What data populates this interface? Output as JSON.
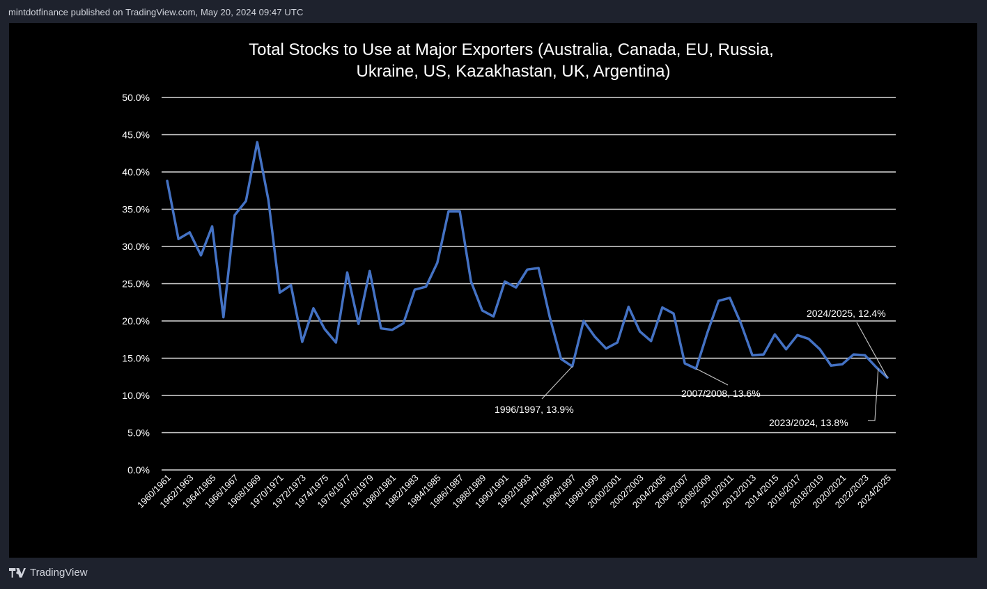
{
  "header": {
    "attribution": "mintdotfinance published on TradingView.com, May 20, 2024 09:47 UTC"
  },
  "footer": {
    "brand": "TradingView",
    "logo_icon": "tradingview-logo-icon"
  },
  "chart_data": {
    "type": "line",
    "title": [
      "Total Stocks to Use at Major Exporters (Australia, Canada, EU, Russia,",
      "Ukraine, US, Kazakhastan, UK, Argentina)"
    ],
    "xlabel": "",
    "ylabel": "",
    "ylim": [
      0,
      50
    ],
    "yticks": [
      "0.0%",
      "5.0%",
      "10.0%",
      "15.0%",
      "20.0%",
      "25.0%",
      "30.0%",
      "35.0%",
      "40.0%",
      "45.0%",
      "50.0%"
    ],
    "grid": true,
    "line_color": "#4472c4",
    "categories": [
      "1960/1961",
      "1961/1962",
      "1962/1963",
      "1963/1964",
      "1964/1965",
      "1965/1966",
      "1966/1967",
      "1967/1968",
      "1968/1969",
      "1969/1970",
      "1970/1971",
      "1971/1972",
      "1972/1973",
      "1973/1974",
      "1974/1975",
      "1975/1976",
      "1976/1977",
      "1977/1978",
      "1978/1979",
      "1979/1980",
      "1980/1981",
      "1981/1982",
      "1982/1983",
      "1983/1984",
      "1984/1985",
      "1985/1986",
      "1986/1987",
      "1987/1988",
      "1988/1989",
      "1989/1990",
      "1990/1991",
      "1991/1992",
      "1992/1993",
      "1993/1994",
      "1994/1995",
      "1995/1996",
      "1996/1997",
      "1997/1998",
      "1998/1999",
      "1999/2000",
      "2000/2001",
      "2001/2002",
      "2002/2003",
      "2003/2004",
      "2004/2005",
      "2005/2006",
      "2006/2007",
      "2007/2008",
      "2008/2009",
      "2009/2010",
      "2010/2011",
      "2011/2012",
      "2012/2013",
      "2013/2014",
      "2014/2015",
      "2015/2016",
      "2016/2017",
      "2017/2018",
      "2018/2019",
      "2019/2020",
      "2020/2021",
      "2021/2022",
      "2022/2023",
      "2023/2024",
      "2024/2025"
    ],
    "x_tick_labels": [
      "1960/1961",
      "1962/1963",
      "1964/1965",
      "1966/1967",
      "1968/1969",
      "1970/1971",
      "1972/1973",
      "1974/1975",
      "1976/1977",
      "1978/1979",
      "1980/1981",
      "1982/1983",
      "1984/1985",
      "1986/1987",
      "1988/1989",
      "1990/1991",
      "1992/1993",
      "1994/1995",
      "1996/1997",
      "1998/1999",
      "2000/2001",
      "2002/2003",
      "2004/2005",
      "2006/2007",
      "2008/2009",
      "2010/2011",
      "2012/2013",
      "2014/2015",
      "2016/2017",
      "2018/2019",
      "2020/2021",
      "2022/2023",
      "2024/2025"
    ],
    "values": [
      38.8,
      31.0,
      31.9,
      28.8,
      32.7,
      20.5,
      34.2,
      36.1,
      44.0,
      36.2,
      23.8,
      24.8,
      17.2,
      21.7,
      18.9,
      17.1,
      26.5,
      19.6,
      26.7,
      19.0,
      18.8,
      19.7,
      24.2,
      24.6,
      27.8,
      34.7,
      34.7,
      25.3,
      21.4,
      20.6,
      25.3,
      24.5,
      26.9,
      27.1,
      20.5,
      14.9,
      13.9,
      20.0,
      17.9,
      16.3,
      17.1,
      21.9,
      18.6,
      17.3,
      21.8,
      21.0,
      14.3,
      13.6,
      18.4,
      22.7,
      23.1,
      19.6,
      15.4,
      15.5,
      18.2,
      16.2,
      18.1,
      17.6,
      16.2,
      14.0,
      14.2,
      15.5,
      15.4,
      13.8,
      12.4
    ],
    "annotations": [
      {
        "label": "1996/1997, 13.9%",
        "category": "1996/1997",
        "value": 13.9
      },
      {
        "label": "2007/2008, 13.6%",
        "category": "2007/2008",
        "value": 13.6
      },
      {
        "label": "2024/2025, 12.4%",
        "category": "2024/2025",
        "value": 12.4
      },
      {
        "label": "2023/2024, 13.8%",
        "category": "2023/2024",
        "value": 13.8
      }
    ]
  }
}
